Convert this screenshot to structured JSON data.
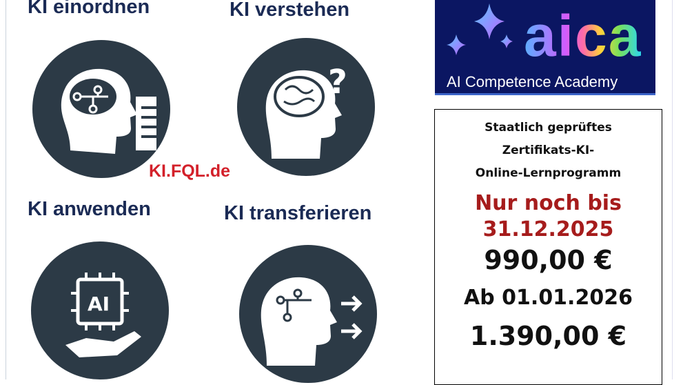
{
  "tiles": [
    {
      "title": "KI einordnen",
      "icon": "head-circuit-brain-document-icon"
    },
    {
      "title": "KI verstehen",
      "icon": "head-brain-question-icon"
    },
    {
      "title": "KI anwenden",
      "icon": "hand-ai-chip-icon"
    },
    {
      "title": "KI transferieren",
      "icon": "head-circuit-arrows-icon"
    }
  ],
  "url": "KI.FQL.de",
  "logo": {
    "wordmark": "aica",
    "subtitle": "AI Competence Academy"
  },
  "offer": {
    "lines": [
      "Staatlich geprüftes",
      "Zertifikats-KI-",
      "Online-Lernprogramm"
    ],
    "deadline_line1": "Nur noch bis",
    "deadline_line2": "31.12.2025",
    "price_now": "990,00 €",
    "from_label": "Ab 01.01.2026",
    "price_later": "1.390,00 €"
  },
  "colors": {
    "navy": "#1b2b55",
    "red": "#d3202a",
    "circle": "#2c3a46",
    "logo_bg": "#0b1662"
  }
}
